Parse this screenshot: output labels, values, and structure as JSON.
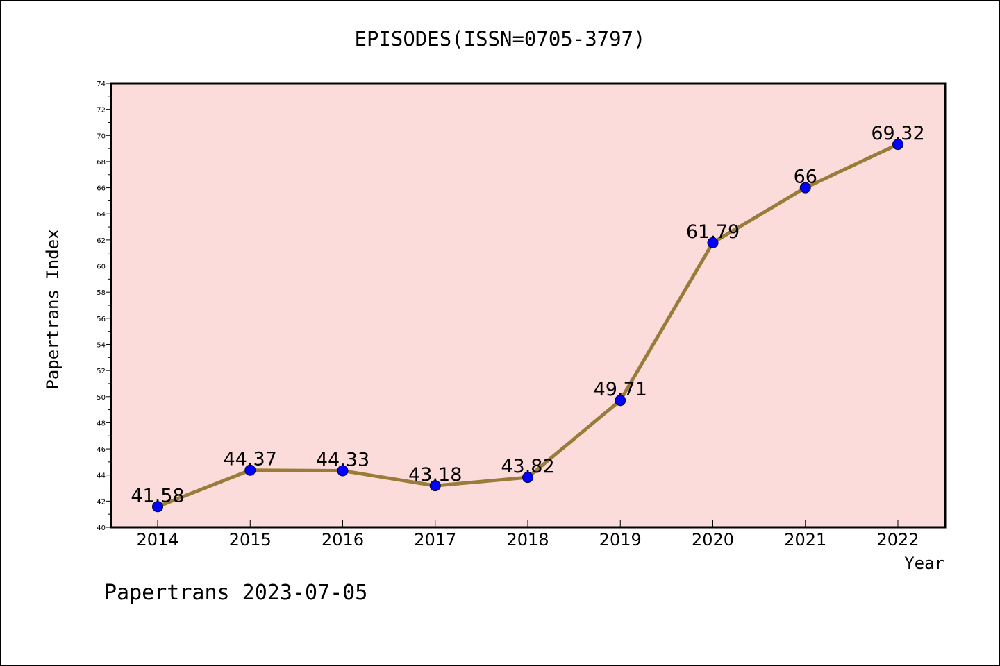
{
  "chart_data": {
    "type": "line",
    "title": "EPISODES(ISSN=0705-3797)",
    "xlabel": "Year",
    "ylabel": "Papertrans Index",
    "categories": [
      "2014",
      "2015",
      "2016",
      "2017",
      "2018",
      "2019",
      "2020",
      "2021",
      "2022"
    ],
    "series": [
      {
        "values": [
          41.58,
          44.37,
          44.33,
          43.18,
          43.82,
          49.71,
          61.79,
          66,
          69.32
        ],
        "data_labels": [
          "41.58",
          "44.37",
          "44.33",
          "43.18",
          "43.82",
          "49.71",
          "61.79",
          "66",
          "69.32"
        ]
      }
    ],
    "ylim": [
      40,
      74
    ],
    "yticks": [
      40,
      42,
      44,
      46,
      48,
      50,
      52,
      54,
      56,
      58,
      60,
      62,
      64,
      66,
      68,
      70,
      72,
      74
    ],
    "grid": false,
    "colors": {
      "plot_background": "#fcdcdb",
      "line": "#9a7c3a",
      "marker": "#0000ff"
    }
  },
  "footer": {
    "text": "Papertrans 2023-07-05"
  }
}
